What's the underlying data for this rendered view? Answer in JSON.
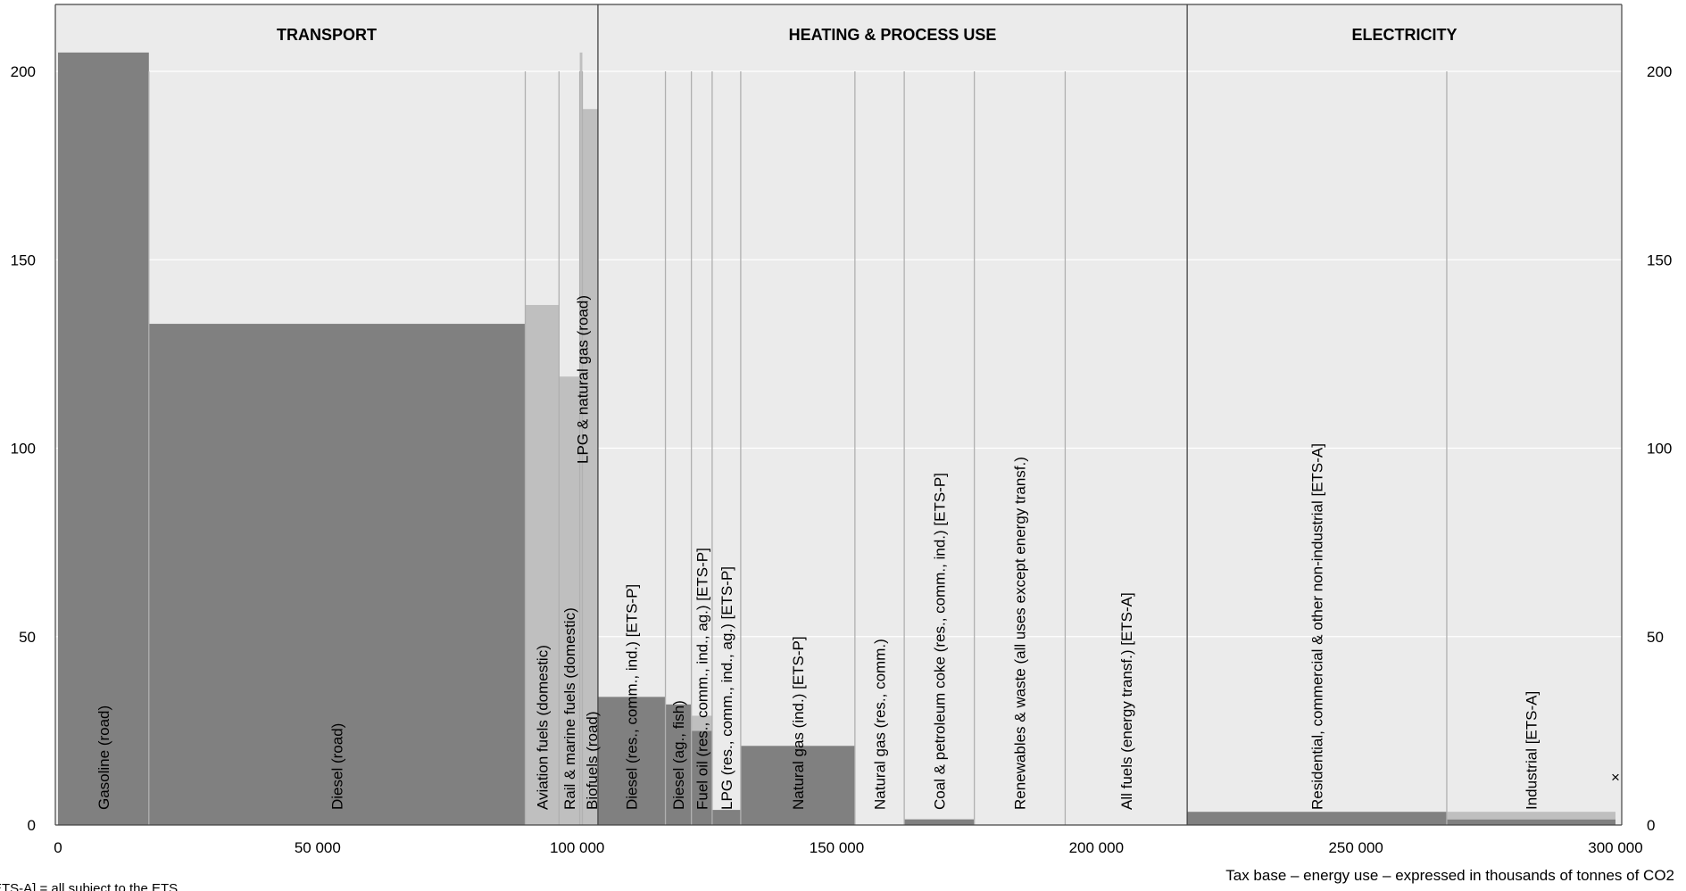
{
  "chart_data": {
    "type": "bar",
    "subtype": "variable-width step chart",
    "xlabel": "Tax base – energy use – expressed in thousands of tonnes of CO2",
    "ylabel": "",
    "xlim": [
      0,
      300000
    ],
    "ylim": [
      0,
      200
    ],
    "xticks": [
      {
        "value": 0,
        "label": "0"
      },
      {
        "value": 50000,
        "label": "50 000"
      },
      {
        "value": 100000,
        "label": "100 000"
      },
      {
        "value": 150000,
        "label": "150 000"
      },
      {
        "value": 200000,
        "label": "200 000"
      },
      {
        "value": 250000,
        "label": "250 000"
      },
      {
        "value": 300000,
        "label": "300 000"
      }
    ],
    "yticks": [
      0,
      50,
      100,
      150,
      200
    ],
    "grid": true,
    "sections": [
      {
        "name": "TRANSPORT",
        "x_start": 0,
        "x_end": 104000
      },
      {
        "name": "HEATING & PROCESS USE",
        "x_start": 104000,
        "x_end": 217500
      },
      {
        "name": "ELECTRICITY",
        "x_start": 217500,
        "x_end": 300000
      }
    ],
    "colors": {
      "dark": "#808080",
      "light": "#bfbfbf",
      "background": "#ebebeb",
      "divider": "#b0b0b0"
    },
    "bars": [
      {
        "label": "Gasoline (road)",
        "x_start": 0,
        "x_end": 17500,
        "segments": [
          {
            "value": 205,
            "color": "dark"
          }
        ]
      },
      {
        "label": "Diesel (road)",
        "x_start": 17500,
        "x_end": 90000,
        "segments": [
          {
            "value": 133,
            "color": "dark"
          }
        ]
      },
      {
        "label": "Aviation fuels (domestic)",
        "x_start": 90000,
        "x_end": 96500,
        "segments": [
          {
            "value": 138,
            "color": "light"
          }
        ]
      },
      {
        "label": "Rail & marine fuels (domestic)",
        "x_start": 96500,
        "x_end": 100500,
        "segments": [
          {
            "value": 119,
            "color": "light"
          }
        ]
      },
      {
        "label": "LPG & natural gas (road)",
        "x_start": 100500,
        "x_end": 101000,
        "segments": [
          {
            "value": 205,
            "color": "light"
          }
        ]
      },
      {
        "label": "Biofuels (road)",
        "x_start": 101000,
        "x_end": 104000,
        "segments": [
          {
            "value": 190,
            "color": "light"
          }
        ]
      },
      {
        "label": "Diesel (res., comm., ind.) [ETS-P]",
        "x_start": 104000,
        "x_end": 117000,
        "segments": [
          {
            "value": 34,
            "color": "dark"
          }
        ]
      },
      {
        "label": "Diesel (ag., fish)",
        "x_start": 117000,
        "x_end": 122000,
        "segments": [
          {
            "value": 32,
            "color": "dark"
          }
        ]
      },
      {
        "label": "Fuel oil (res., comm., ind., ag.) [ETS-P]",
        "x_start": 122000,
        "x_end": 126000,
        "segments": [
          {
            "value": 25,
            "color": "dark"
          },
          {
            "value": 4,
            "color": "light"
          }
        ]
      },
      {
        "label": "LPG (res., comm., ind., ag.) [ETS-P]",
        "x_start": 126000,
        "x_end": 131500,
        "segments": [
          {
            "value": 4,
            "color": "dark"
          }
        ]
      },
      {
        "label": "Natural gas (ind.) [ETS-P]",
        "x_start": 131500,
        "x_end": 153500,
        "segments": [
          {
            "value": 21,
            "color": "dark"
          }
        ]
      },
      {
        "label": "Natural gas (res., comm.)",
        "x_start": 153500,
        "x_end": 163000,
        "segments": [
          {
            "value": 0,
            "color": "dark"
          }
        ]
      },
      {
        "label": "Coal & petroleum coke (res., comm., ind.) [ETS-P]",
        "x_start": 163000,
        "x_end": 176500,
        "segments": [
          {
            "value": 1.5,
            "color": "dark"
          }
        ]
      },
      {
        "label": "Renewables & waste (all uses except energy transf.)",
        "x_start": 176500,
        "x_end": 194000,
        "segments": [
          {
            "value": 0,
            "color": "dark"
          }
        ]
      },
      {
        "label": "All fuels (energy transf.) [ETS-A]",
        "x_start": 194000,
        "x_end": 217500,
        "segments": [
          {
            "value": 0,
            "color": "dark"
          }
        ]
      },
      {
        "label": "Residential, commercial & other non-industrial [ETS-A]",
        "x_start": 217500,
        "x_end": 267500,
        "segments": [
          {
            "value": 3.5,
            "color": "dark"
          }
        ]
      },
      {
        "label": "Industrial [ETS-A]",
        "x_start": 267500,
        "x_end": 300000,
        "segments": [
          {
            "value": 1.5,
            "color": "dark"
          },
          {
            "value": 2,
            "color": "light"
          }
        ]
      }
    ],
    "markers": [
      {
        "x": 300000,
        "y": 13,
        "symbol": "×"
      }
    ],
    "note": "ETS-A] = all subject to the ETS"
  }
}
